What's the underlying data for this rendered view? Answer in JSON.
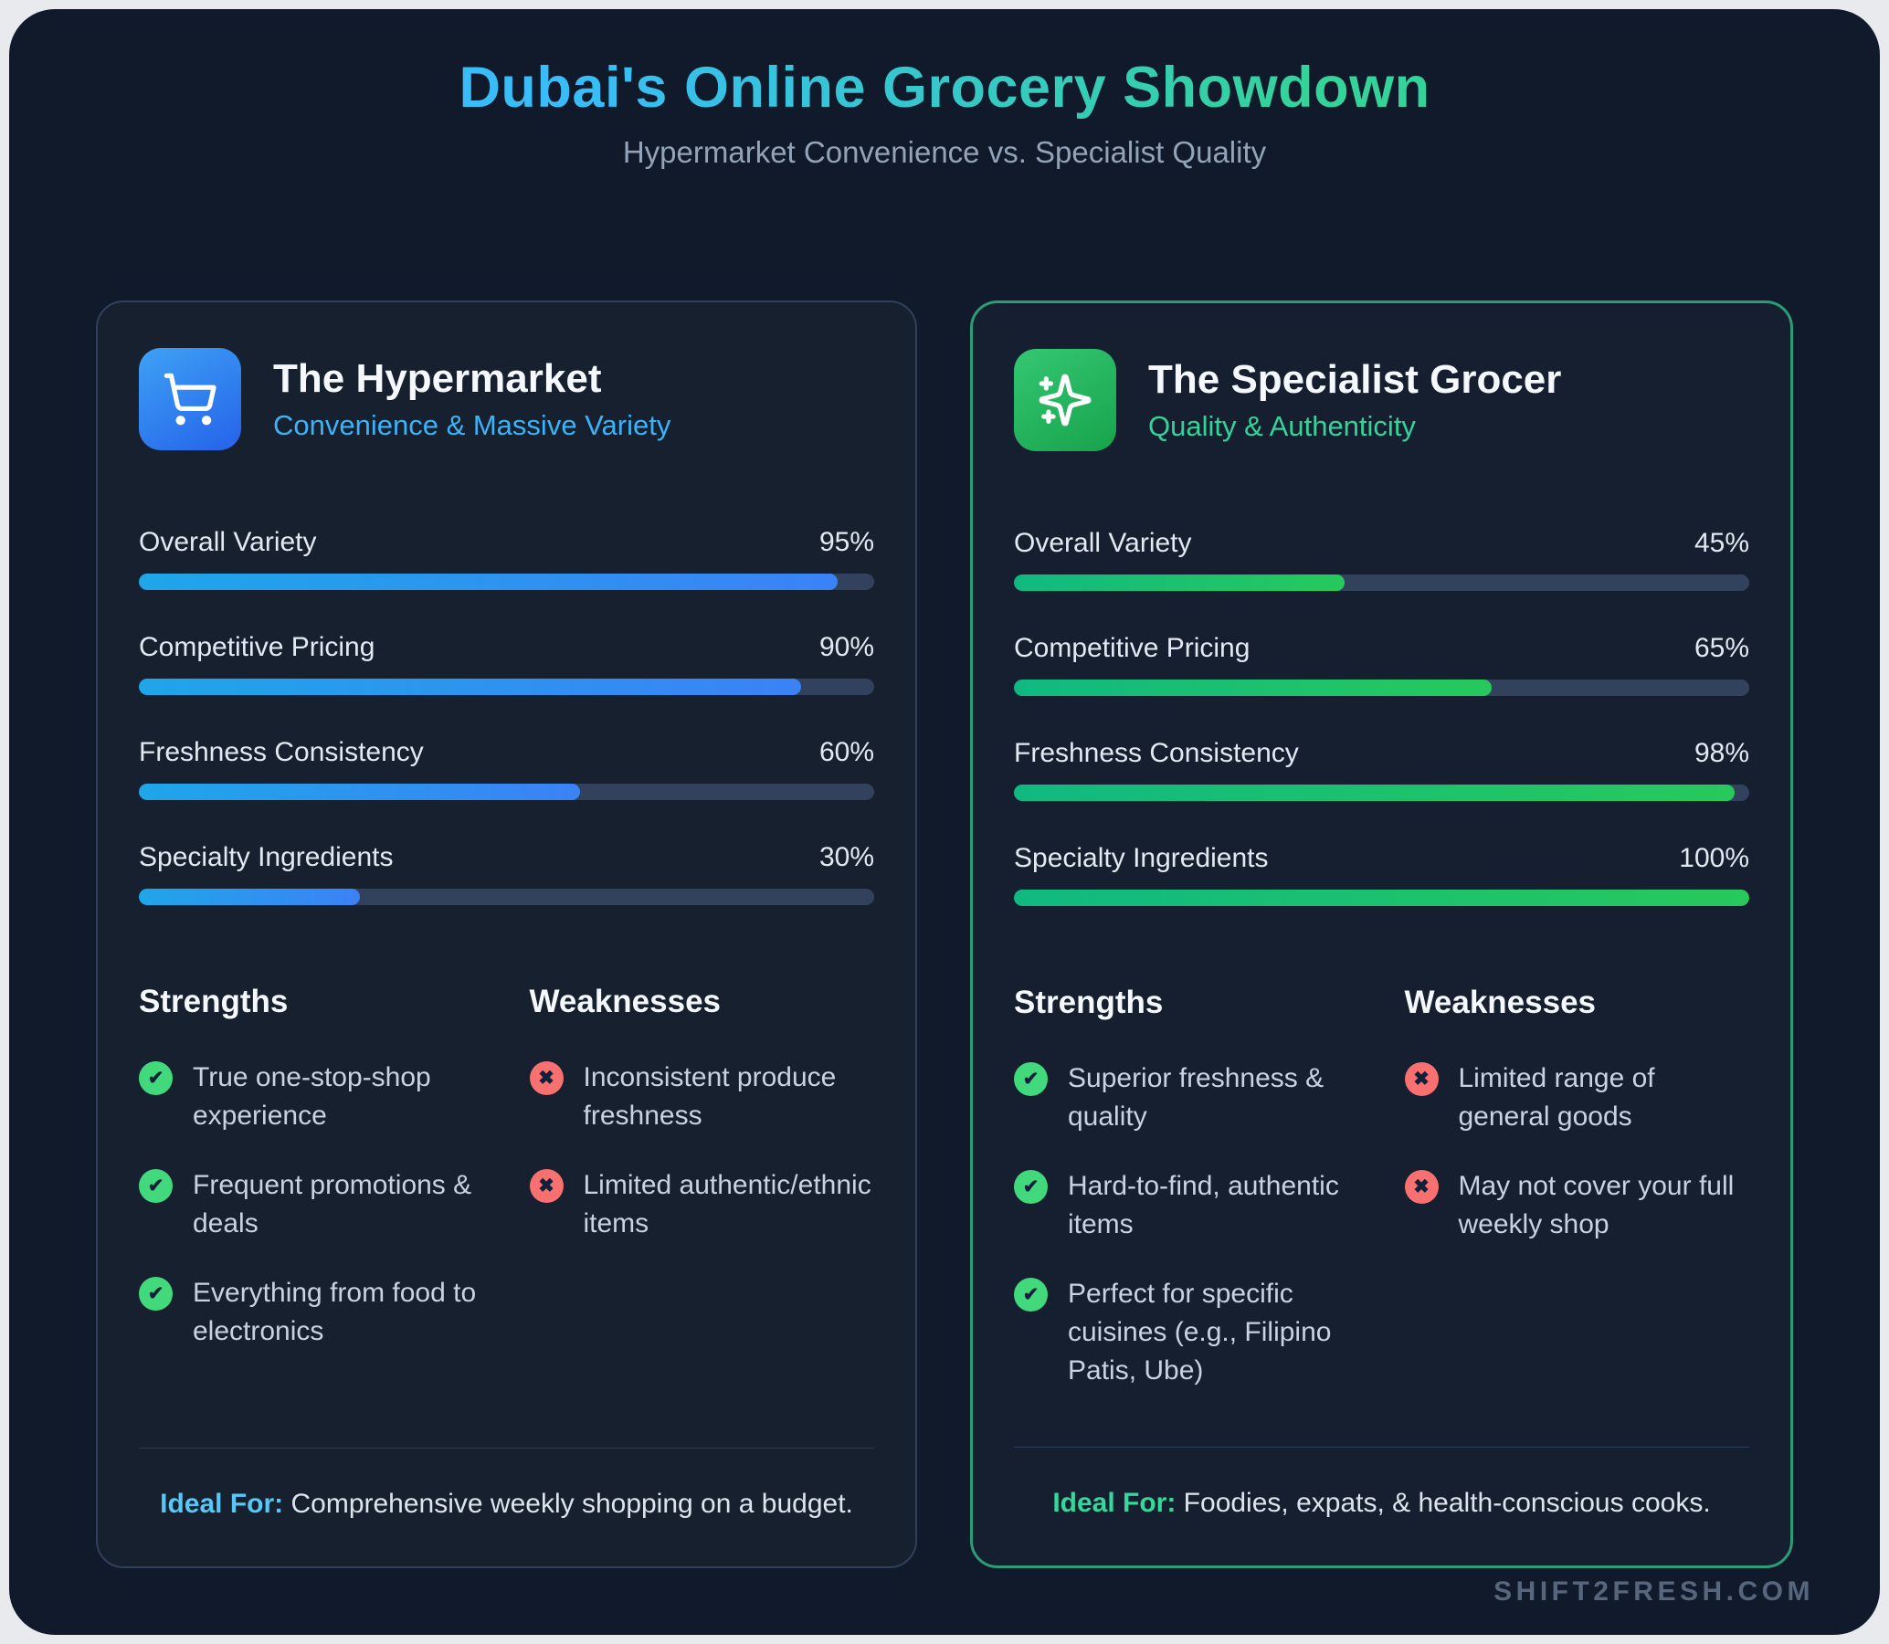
{
  "header": {
    "title": "Dubai's Online Grocery Showdown",
    "subtitle": "Hypermarket Convenience vs. Specialist Quality"
  },
  "colors": {
    "title_gradient_start": "#38bdf8",
    "title_gradient_end": "#34d399",
    "blue_accent": "#3cb2f7",
    "green_accent": "#35d399",
    "bar_blue_gradient": [
      "#1fa6e8",
      "#3b82f6"
    ],
    "bar_green_gradient": [
      "#10b981",
      "#27c95c"
    ],
    "bar_track": "#33425c",
    "check_badge": "#41d97c",
    "cross_badge": "#f87070",
    "page_background": "#101a2b",
    "card_background": "#16202f",
    "green_card_border": "#2a9c77"
  },
  "icons": {
    "check": "✔",
    "cross": "✖"
  },
  "cards": [
    {
      "icon": "shopping-cart-icon",
      "title": "The Hypermarket",
      "tagline": "Convenience & Massive Variety",
      "metrics": [
        {
          "label": "Overall Variety",
          "value": 95,
          "display": "95%"
        },
        {
          "label": "Competitive Pricing",
          "value": 90,
          "display": "90%"
        },
        {
          "label": "Freshness Consistency",
          "value": 60,
          "display": "60%"
        },
        {
          "label": "Specialty Ingredients",
          "value": 30,
          "display": "30%"
        }
      ],
      "strengths_title": "Strengths",
      "strengths": [
        "True one-stop-shop experience",
        "Frequent promotions & deals",
        "Everything from food to electronics"
      ],
      "weaknesses_title": "Weaknesses",
      "weaknesses": [
        "Inconsistent produce freshness",
        "Limited authentic/ethnic items"
      ],
      "ideal_label": "Ideal For:",
      "ideal_text": " Comprehensive weekly shopping on a budget."
    },
    {
      "icon": "sparkles-icon",
      "title": "The Specialist Grocer",
      "tagline": "Quality & Authenticity",
      "metrics": [
        {
          "label": "Overall Variety",
          "value": 45,
          "display": "45%"
        },
        {
          "label": "Competitive Pricing",
          "value": 65,
          "display": "65%"
        },
        {
          "label": "Freshness Consistency",
          "value": 98,
          "display": "98%"
        },
        {
          "label": "Specialty Ingredients",
          "value": 100,
          "display": "100%"
        }
      ],
      "strengths_title": "Strengths",
      "strengths": [
        "Superior freshness & quality",
        "Hard-to-find, authentic items",
        "Perfect for specific cuisines (e.g., Filipino Patis, Ube)"
      ],
      "weaknesses_title": "Weaknesses",
      "weaknesses": [
        "Limited range of general goods",
        "May not cover your full weekly shop"
      ],
      "ideal_label": "Ideal For:",
      "ideal_text": " Foodies, expats, & health-conscious cooks."
    }
  ],
  "footer": {
    "watermark": "SHIFT2FRESH.COM"
  },
  "chart_data": [
    {
      "type": "bar",
      "title": "The Hypermarket",
      "categories": [
        "Overall Variety",
        "Competitive Pricing",
        "Freshness Consistency",
        "Specialty Ingredients"
      ],
      "values": [
        95,
        90,
        60,
        30
      ],
      "unit": "%",
      "xlim": [
        0,
        100
      ]
    },
    {
      "type": "bar",
      "title": "The Specialist Grocer",
      "categories": [
        "Overall Variety",
        "Competitive Pricing",
        "Freshness Consistency",
        "Specialty Ingredients"
      ],
      "values": [
        45,
        65,
        98,
        100
      ],
      "unit": "%",
      "xlim": [
        0,
        100
      ]
    }
  ]
}
